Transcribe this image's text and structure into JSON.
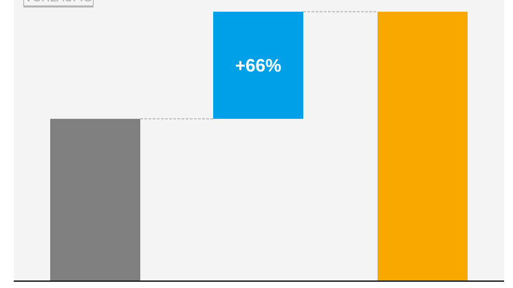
{
  "stamp": "VORLÄUFIG",
  "chart_data": {
    "type": "waterfall",
    "categories": [
      "",
      "",
      ""
    ],
    "values": [
      100,
      66,
      166
    ],
    "kinds": [
      "base",
      "increase",
      "total"
    ],
    "colors": [
      "#808080",
      "#00a0e9",
      "#f9a800"
    ],
    "data_labels": [
      "",
      "+66%",
      ""
    ],
    "ylim": [
      0,
      166
    ],
    "grid": false,
    "legend": "none"
  }
}
